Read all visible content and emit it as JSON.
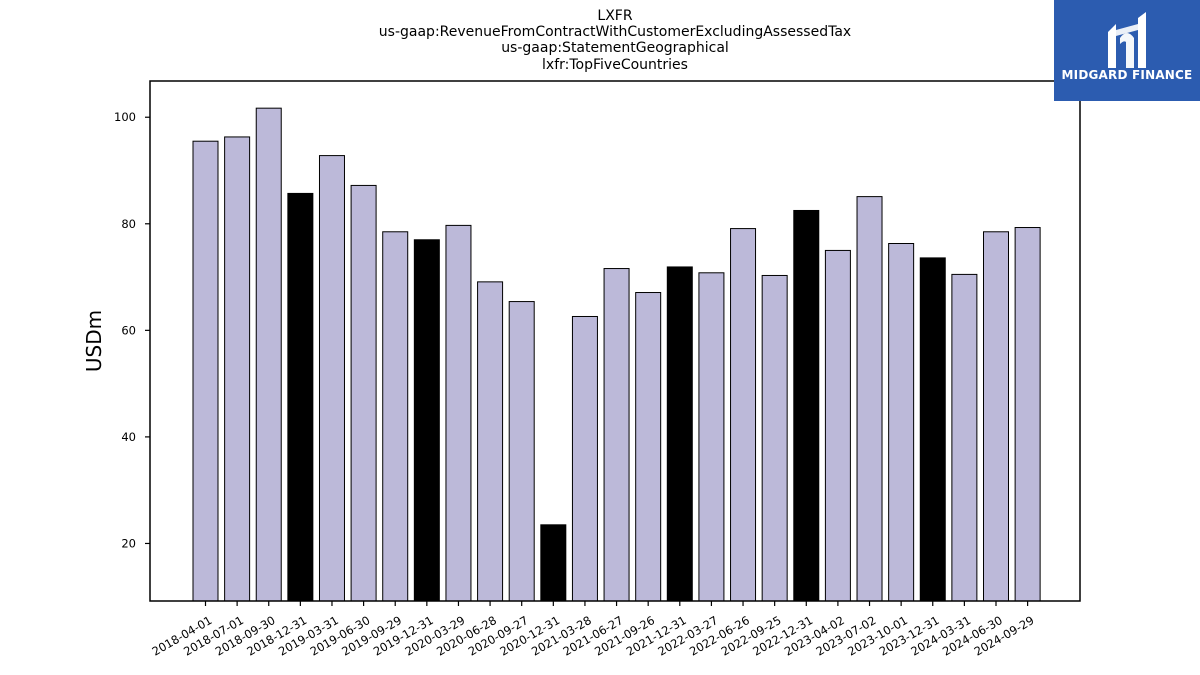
{
  "logo": {
    "text": "MIDGARD FINANCE",
    "background": "#2c5cb0",
    "icon": "midgard-finance-logo-icon"
  },
  "colors": {
    "normal_bar": "#bcb9d9",
    "highlight_bar": "#000000",
    "edge": "#000000"
  },
  "chart_data": {
    "type": "bar",
    "title_lines": [
      "LXFR",
      "us-gaap:RevenueFromContractWithCustomerExcludingAssessedTax",
      "us-gaap:StatementGeographical",
      "lxfr:TopFiveCountries"
    ],
    "xlabel": "",
    "ylabel": "USDm",
    "ylim": [
      9.2,
      106.8
    ],
    "yticks": [
      20,
      40,
      60,
      80,
      100
    ],
    "grid": false,
    "categories": [
      "2018-04-01",
      "2018-07-01",
      "2018-09-30",
      "2018-12-31",
      "2019-03-31",
      "2019-06-30",
      "2019-09-29",
      "2019-12-31",
      "2020-03-29",
      "2020-06-28",
      "2020-09-27",
      "2020-12-31",
      "2021-03-28",
      "2021-06-27",
      "2021-09-26",
      "2021-12-31",
      "2022-03-27",
      "2022-06-26",
      "2022-09-25",
      "2022-12-31",
      "2023-04-02",
      "2023-07-02",
      "2023-10-01",
      "2023-12-31",
      "2024-03-31",
      "2024-06-30",
      "2024-09-29"
    ],
    "values": [
      95.5,
      96.3,
      101.7,
      85.7,
      92.8,
      87.2,
      78.5,
      77.0,
      79.7,
      69.1,
      65.4,
      23.5,
      62.6,
      71.6,
      67.1,
      71.9,
      70.8,
      79.1,
      70.3,
      82.5,
      75.0,
      85.1,
      76.3,
      73.6,
      70.5,
      78.5,
      79.3
    ],
    "highlighted": [
      false,
      false,
      false,
      true,
      false,
      false,
      false,
      true,
      false,
      false,
      false,
      true,
      false,
      false,
      false,
      true,
      false,
      false,
      false,
      true,
      false,
      false,
      false,
      true,
      false,
      false,
      false
    ]
  }
}
